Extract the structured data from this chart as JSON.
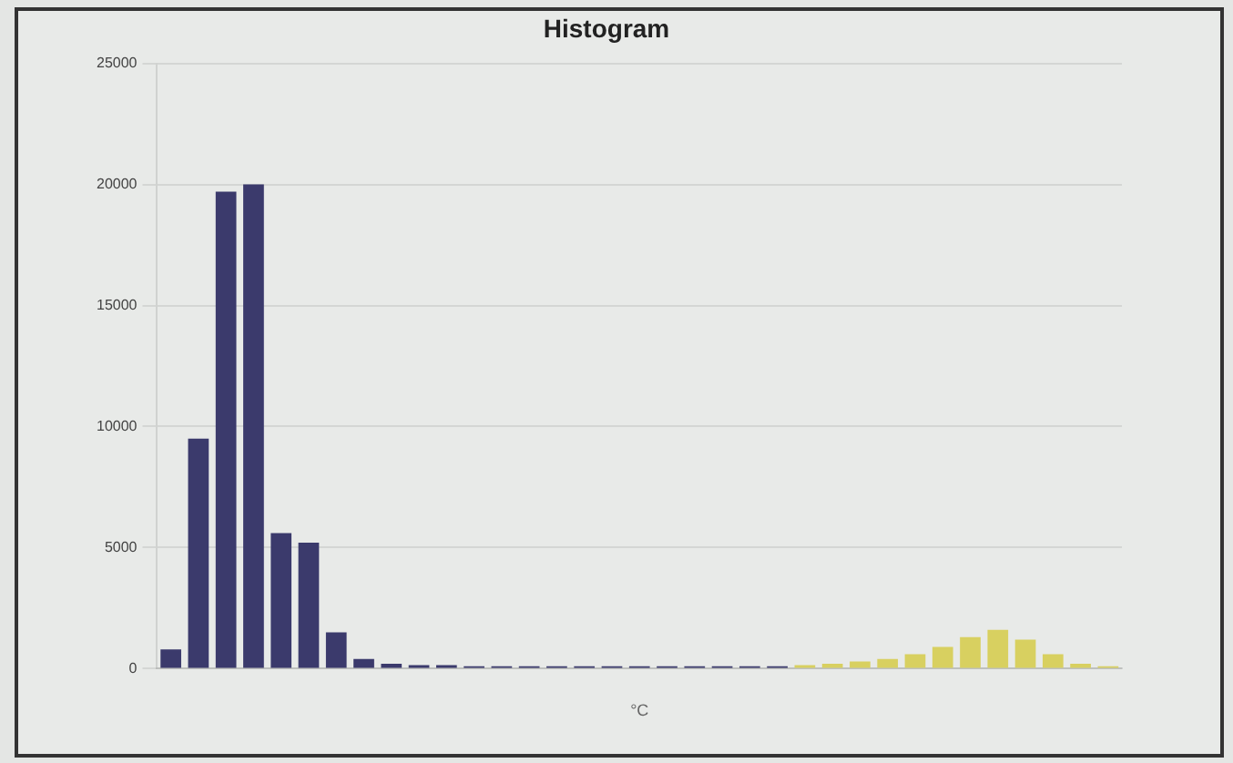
{
  "chart_data": {
    "type": "bar",
    "title": "Histogram",
    "xlabel": "°C",
    "categories": [
      null,
      null,
      null,
      null,
      null,
      null,
      null,
      null,
      null,
      null,
      null,
      null,
      null,
      null,
      null,
      null,
      null,
      null,
      null,
      null,
      null,
      null,
      null,
      null,
      null,
      null,
      null,
      null,
      null,
      null,
      null,
      null,
      null,
      null,
      null
    ],
    "values": [
      800,
      9500,
      19700,
      20000,
      5600,
      5200,
      1500,
      400,
      200,
      150,
      150,
      100,
      100,
      100,
      100,
      100,
      100,
      100,
      100,
      100,
      100,
      100,
      100,
      150,
      200,
      300,
      400,
      600,
      900,
      1300,
      1600,
      1200,
      600,
      200,
      100
    ],
    "colors": [
      "#3b3a6c",
      "#3b3a6c",
      "#3b3a6c",
      "#3b3a6c",
      "#3b3a6c",
      "#3b3a6c",
      "#3b3a6c",
      "#3b3a6c",
      "#3b3a6c",
      "#3b3a6c",
      "#3b3a6c",
      "#3b3a6c",
      "#3b3a6c",
      "#3b3a6c",
      "#3b3a6c",
      "#3b3a6c",
      "#3b3a6c",
      "#3b3a6c",
      "#3b3a6c",
      "#3b3a6c",
      "#3b3a6c",
      "#3b3a6c",
      "#3b3a6c",
      "#d8d060",
      "#d8d060",
      "#d8d060",
      "#d8d060",
      "#d8d060",
      "#d8d060",
      "#d8d060",
      "#d8d060",
      "#d8d060",
      "#d8d060",
      "#d8d060",
      "#d8d060"
    ],
    "ylim": [
      0,
      25000
    ],
    "yticks": [
      0,
      5000,
      10000,
      15000,
      20000,
      25000
    ],
    "grid": "y"
  }
}
